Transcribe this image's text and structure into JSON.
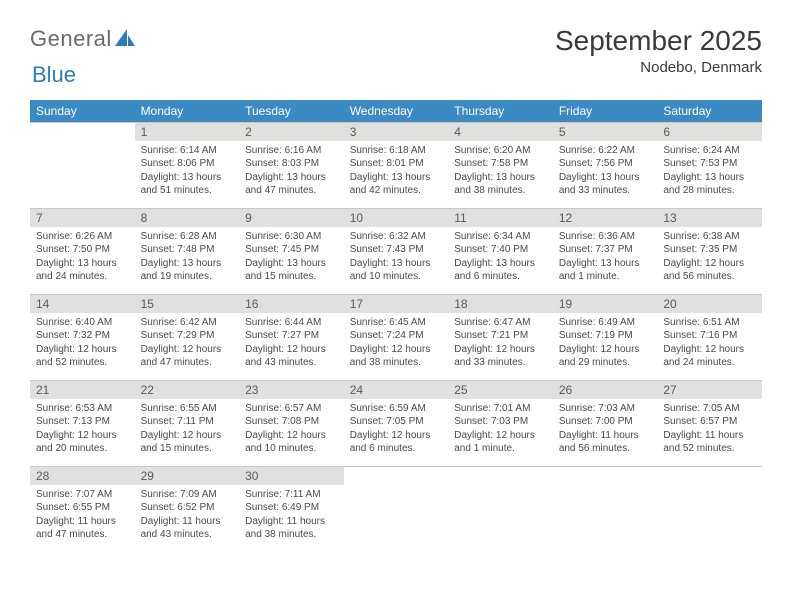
{
  "logo": {
    "text_a": "General",
    "text_b": "Blue"
  },
  "title": "September 2025",
  "location": "Nodebo, Denmark",
  "colors": {
    "header_bg": "#3b8ac4",
    "header_fg": "#ffffff",
    "daynum_bg": "#e0e0df",
    "text": "#4a4a4a"
  },
  "weekdays": [
    "Sunday",
    "Monday",
    "Tuesday",
    "Wednesday",
    "Thursday",
    "Friday",
    "Saturday"
  ],
  "weeks": [
    [
      {
        "n": "",
        "lines": []
      },
      {
        "n": "1",
        "lines": [
          "Sunrise: 6:14 AM",
          "Sunset: 8:06 PM",
          "Daylight: 13 hours",
          "and 51 minutes."
        ]
      },
      {
        "n": "2",
        "lines": [
          "Sunrise: 6:16 AM",
          "Sunset: 8:03 PM",
          "Daylight: 13 hours",
          "and 47 minutes."
        ]
      },
      {
        "n": "3",
        "lines": [
          "Sunrise: 6:18 AM",
          "Sunset: 8:01 PM",
          "Daylight: 13 hours",
          "and 42 minutes."
        ]
      },
      {
        "n": "4",
        "lines": [
          "Sunrise: 6:20 AM",
          "Sunset: 7:58 PM",
          "Daylight: 13 hours",
          "and 38 minutes."
        ]
      },
      {
        "n": "5",
        "lines": [
          "Sunrise: 6:22 AM",
          "Sunset: 7:56 PM",
          "Daylight: 13 hours",
          "and 33 minutes."
        ]
      },
      {
        "n": "6",
        "lines": [
          "Sunrise: 6:24 AM",
          "Sunset: 7:53 PM",
          "Daylight: 13 hours",
          "and 28 minutes."
        ]
      }
    ],
    [
      {
        "n": "7",
        "lines": [
          "Sunrise: 6:26 AM",
          "Sunset: 7:50 PM",
          "Daylight: 13 hours",
          "and 24 minutes."
        ]
      },
      {
        "n": "8",
        "lines": [
          "Sunrise: 6:28 AM",
          "Sunset: 7:48 PM",
          "Daylight: 13 hours",
          "and 19 minutes."
        ]
      },
      {
        "n": "9",
        "lines": [
          "Sunrise: 6:30 AM",
          "Sunset: 7:45 PM",
          "Daylight: 13 hours",
          "and 15 minutes."
        ]
      },
      {
        "n": "10",
        "lines": [
          "Sunrise: 6:32 AM",
          "Sunset: 7:43 PM",
          "Daylight: 13 hours",
          "and 10 minutes."
        ]
      },
      {
        "n": "11",
        "lines": [
          "Sunrise: 6:34 AM",
          "Sunset: 7:40 PM",
          "Daylight: 13 hours",
          "and 6 minutes."
        ]
      },
      {
        "n": "12",
        "lines": [
          "Sunrise: 6:36 AM",
          "Sunset: 7:37 PM",
          "Daylight: 13 hours",
          "and 1 minute."
        ]
      },
      {
        "n": "13",
        "lines": [
          "Sunrise: 6:38 AM",
          "Sunset: 7:35 PM",
          "Daylight: 12 hours",
          "and 56 minutes."
        ]
      }
    ],
    [
      {
        "n": "14",
        "lines": [
          "Sunrise: 6:40 AM",
          "Sunset: 7:32 PM",
          "Daylight: 12 hours",
          "and 52 minutes."
        ]
      },
      {
        "n": "15",
        "lines": [
          "Sunrise: 6:42 AM",
          "Sunset: 7:29 PM",
          "Daylight: 12 hours",
          "and 47 minutes."
        ]
      },
      {
        "n": "16",
        "lines": [
          "Sunrise: 6:44 AM",
          "Sunset: 7:27 PM",
          "Daylight: 12 hours",
          "and 43 minutes."
        ]
      },
      {
        "n": "17",
        "lines": [
          "Sunrise: 6:45 AM",
          "Sunset: 7:24 PM",
          "Daylight: 12 hours",
          "and 38 minutes."
        ]
      },
      {
        "n": "18",
        "lines": [
          "Sunrise: 6:47 AM",
          "Sunset: 7:21 PM",
          "Daylight: 12 hours",
          "and 33 minutes."
        ]
      },
      {
        "n": "19",
        "lines": [
          "Sunrise: 6:49 AM",
          "Sunset: 7:19 PM",
          "Daylight: 12 hours",
          "and 29 minutes."
        ]
      },
      {
        "n": "20",
        "lines": [
          "Sunrise: 6:51 AM",
          "Sunset: 7:16 PM",
          "Daylight: 12 hours",
          "and 24 minutes."
        ]
      }
    ],
    [
      {
        "n": "21",
        "lines": [
          "Sunrise: 6:53 AM",
          "Sunset: 7:13 PM",
          "Daylight: 12 hours",
          "and 20 minutes."
        ]
      },
      {
        "n": "22",
        "lines": [
          "Sunrise: 6:55 AM",
          "Sunset: 7:11 PM",
          "Daylight: 12 hours",
          "and 15 minutes."
        ]
      },
      {
        "n": "23",
        "lines": [
          "Sunrise: 6:57 AM",
          "Sunset: 7:08 PM",
          "Daylight: 12 hours",
          "and 10 minutes."
        ]
      },
      {
        "n": "24",
        "lines": [
          "Sunrise: 6:59 AM",
          "Sunset: 7:05 PM",
          "Daylight: 12 hours",
          "and 6 minutes."
        ]
      },
      {
        "n": "25",
        "lines": [
          "Sunrise: 7:01 AM",
          "Sunset: 7:03 PM",
          "Daylight: 12 hours",
          "and 1 minute."
        ]
      },
      {
        "n": "26",
        "lines": [
          "Sunrise: 7:03 AM",
          "Sunset: 7:00 PM",
          "Daylight: 11 hours",
          "and 56 minutes."
        ]
      },
      {
        "n": "27",
        "lines": [
          "Sunrise: 7:05 AM",
          "Sunset: 6:57 PM",
          "Daylight: 11 hours",
          "and 52 minutes."
        ]
      }
    ],
    [
      {
        "n": "28",
        "lines": [
          "Sunrise: 7:07 AM",
          "Sunset: 6:55 PM",
          "Daylight: 11 hours",
          "and 47 minutes."
        ]
      },
      {
        "n": "29",
        "lines": [
          "Sunrise: 7:09 AM",
          "Sunset: 6:52 PM",
          "Daylight: 11 hours",
          "and 43 minutes."
        ]
      },
      {
        "n": "30",
        "lines": [
          "Sunrise: 7:11 AM",
          "Sunset: 6:49 PM",
          "Daylight: 11 hours",
          "and 38 minutes."
        ]
      },
      {
        "n": "",
        "lines": []
      },
      {
        "n": "",
        "lines": []
      },
      {
        "n": "",
        "lines": []
      },
      {
        "n": "",
        "lines": []
      }
    ]
  ]
}
